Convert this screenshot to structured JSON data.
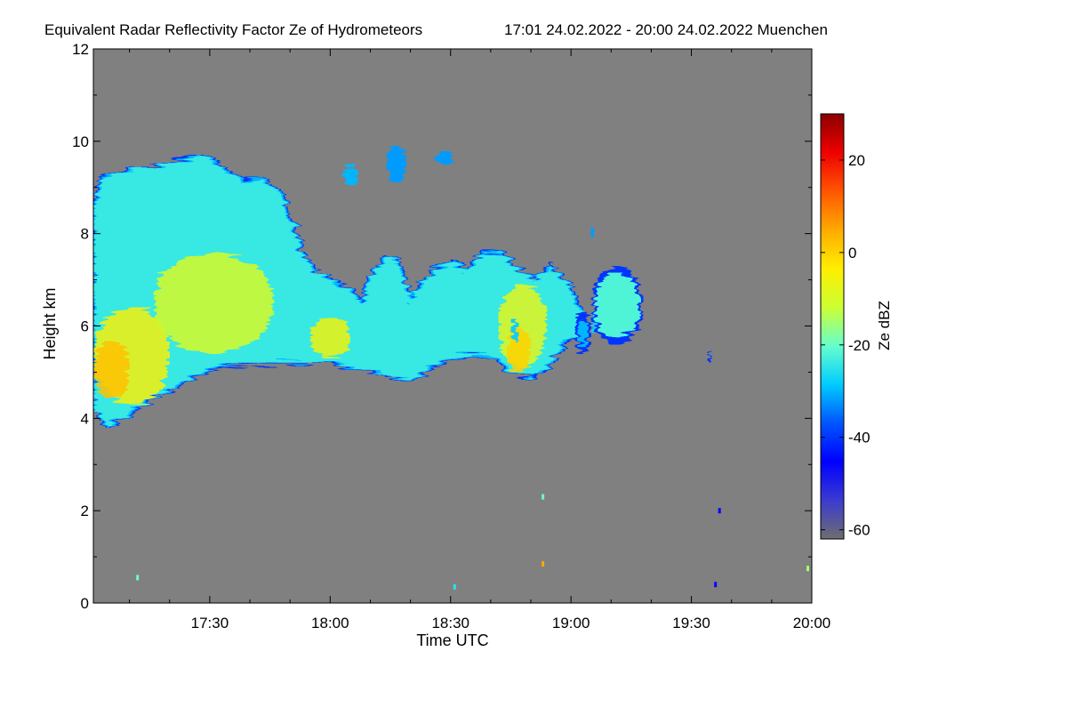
{
  "chart_data": {
    "type": "heatmap",
    "title": "Equivalent Radar Reflectivity Factor Ze of Hydrometeors",
    "time_range_label": "17:01 24.02.2022 - 20:00 24.02.2022 Muenchen",
    "xlabel": "Time UTC",
    "ylabel": "Height km",
    "x_range_minutes_utc": [
      1021,
      1200
    ],
    "xticks": [
      {
        "label": "17:30",
        "minutes": 1050
      },
      {
        "label": "18:00",
        "minutes": 1080
      },
      {
        "label": "18:30",
        "minutes": 1110
      },
      {
        "label": "19:00",
        "minutes": 1140
      },
      {
        "label": "19:30",
        "minutes": 1170
      },
      {
        "label": "20:00",
        "minutes": 1200
      }
    ],
    "ylim_km": [
      0,
      12
    ],
    "yticks": [
      0,
      2,
      4,
      6,
      8,
      10,
      12
    ],
    "colorbar": {
      "label": "Ze dBZ",
      "range": [
        -62,
        30
      ],
      "ticks": [
        -60,
        -40,
        -20,
        0,
        20
      ],
      "colors": [
        "#6e6e6e",
        "#3b3bd0",
        "#0000ff",
        "#0055ff",
        "#00ccff",
        "#66ffcc",
        "#ccff33",
        "#ffee00",
        "#ffaa00",
        "#ff5500",
        "#ee0000",
        "#8b0000"
      ]
    },
    "no_data_color": "#808080",
    "cloud_layer": {
      "base_km": [
        {
          "t": 1021,
          "h": 4.3
        },
        {
          "t": 1024,
          "h": 3.8
        },
        {
          "t": 1030,
          "h": 4.1
        },
        {
          "t": 1036,
          "h": 4.5
        },
        {
          "t": 1042,
          "h": 4.7
        },
        {
          "t": 1050,
          "h": 5.1
        },
        {
          "t": 1060,
          "h": 5.2
        },
        {
          "t": 1070,
          "h": 5.2
        },
        {
          "t": 1080,
          "h": 5.2
        },
        {
          "t": 1090,
          "h": 5.0
        },
        {
          "t": 1095,
          "h": 4.9
        },
        {
          "t": 1100,
          "h": 4.8
        },
        {
          "t": 1105,
          "h": 5.1
        },
        {
          "t": 1110,
          "h": 5.3
        },
        {
          "t": 1115,
          "h": 5.4
        },
        {
          "t": 1122,
          "h": 5.3
        },
        {
          "t": 1125,
          "h": 5.0
        },
        {
          "t": 1130,
          "h": 4.9
        },
        {
          "t": 1134,
          "h": 5.1
        },
        {
          "t": 1137,
          "h": 5.5
        },
        {
          "t": 1140,
          "h": 5.7
        },
        {
          "t": 1143,
          "h": 5.8
        }
      ],
      "top_km": [
        {
          "t": 1021,
          "h": 8.6
        },
        {
          "t": 1023,
          "h": 9.2
        },
        {
          "t": 1030,
          "h": 9.4
        },
        {
          "t": 1036,
          "h": 9.4
        },
        {
          "t": 1042,
          "h": 9.6
        },
        {
          "t": 1047,
          "h": 9.7
        },
        {
          "t": 1052,
          "h": 9.5
        },
        {
          "t": 1058,
          "h": 9.1
        },
        {
          "t": 1063,
          "h": 9.2
        },
        {
          "t": 1067,
          "h": 8.9
        },
        {
          "t": 1070,
          "h": 8.4
        },
        {
          "t": 1073,
          "h": 7.6
        },
        {
          "t": 1076,
          "h": 7.2
        },
        {
          "t": 1080,
          "h": 7.0
        },
        {
          "t": 1085,
          "h": 6.8
        },
        {
          "t": 1088,
          "h": 6.5
        },
        {
          "t": 1091,
          "h": 7.2
        },
        {
          "t": 1094,
          "h": 7.5
        },
        {
          "t": 1097,
          "h": 7.4
        },
        {
          "t": 1100,
          "h": 6.6
        },
        {
          "t": 1103,
          "h": 6.9
        },
        {
          "t": 1106,
          "h": 7.2
        },
        {
          "t": 1110,
          "h": 7.4
        },
        {
          "t": 1114,
          "h": 7.2
        },
        {
          "t": 1118,
          "h": 7.6
        },
        {
          "t": 1123,
          "h": 7.6
        },
        {
          "t": 1127,
          "h": 7.2
        },
        {
          "t": 1131,
          "h": 7.0
        },
        {
          "t": 1134,
          "h": 7.3
        },
        {
          "t": 1137,
          "h": 7.1
        },
        {
          "t": 1140,
          "h": 6.8
        },
        {
          "t": 1143,
          "h": 6.2
        }
      ],
      "small_cells": [
        {
          "t0": 1113,
          "t1": 1116,
          "h": 6.7,
          "dh": 1.0,
          "ze": -24
        },
        {
          "t0": 1145,
          "t1": 1147,
          "h": 6.2,
          "dh": 0.7,
          "ze": -28
        },
        {
          "t0": 1125,
          "t1": 1127,
          "h": 5.9,
          "dh": 0.5,
          "ze": -28
        }
      ]
    },
    "separate_cells": [
      {
        "t0": 1145,
        "t1": 1158,
        "h0": 5.6,
        "h1": 7.3,
        "ze": -22
      },
      {
        "t0": 1174,
        "t1": 1175,
        "h0": 5.2,
        "h1": 5.5,
        "ze": -28
      },
      {
        "t0": 1141,
        "t1": 1145,
        "h0": 5.4,
        "h1": 6.3,
        "ze": -30
      }
    ],
    "high_fragments": [
      {
        "t0": 1083,
        "t1": 1087,
        "h0": 9.0,
        "h1": 9.5,
        "ze": -30
      },
      {
        "t0": 1094,
        "t1": 1099,
        "h0": 9.1,
        "h1": 9.9,
        "ze": -32
      },
      {
        "t0": 1106,
        "t1": 1111,
        "h0": 9.5,
        "h1": 9.8,
        "ze": -32
      },
      {
        "t0": 1145,
        "t1": 1146,
        "h0": 7.9,
        "h1": 8.2,
        "ze": -32
      }
    ],
    "core_regions": [
      {
        "t0": 1021,
        "t1": 1040,
        "h0": 4.3,
        "h1": 6.4,
        "ze": -5
      },
      {
        "t0": 1021,
        "t1": 1030,
        "h0": 4.4,
        "h1": 5.7,
        "ze": 2
      },
      {
        "t0": 1036,
        "t1": 1066,
        "h0": 5.4,
        "h1": 7.6,
        "ze": -10
      },
      {
        "t0": 1075,
        "t1": 1085,
        "h0": 5.3,
        "h1": 6.2,
        "ze": -6
      },
      {
        "t0": 1122,
        "t1": 1134,
        "h0": 5.1,
        "h1": 6.9,
        "ze": -8
      },
      {
        "t0": 1124,
        "t1": 1130,
        "h0": 5.0,
        "h1": 6.0,
        "ze": 0
      }
    ],
    "speckles": [
      {
        "t": 1177,
        "h": 2.0,
        "ze": -45
      },
      {
        "t": 1176,
        "h": 0.4,
        "ze": -45
      },
      {
        "t": 1133,
        "h": 2.3,
        "ze": -20
      },
      {
        "t": 1133,
        "h": 0.85,
        "ze": 5
      },
      {
        "t": 1199,
        "h": 0.75,
        "ze": -15
      },
      {
        "t": 1032,
        "h": 0.55,
        "ze": -20
      },
      {
        "t": 1111,
        "h": 0.35,
        "ze": -25
      }
    ]
  }
}
